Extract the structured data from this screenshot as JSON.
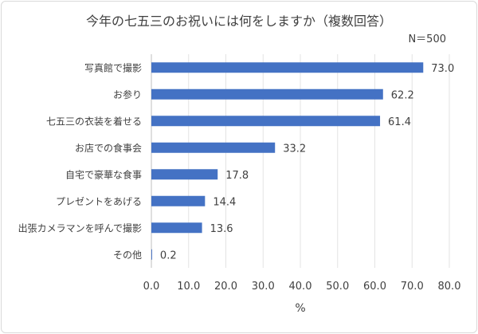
{
  "chart_data": {
    "type": "bar",
    "orientation": "horizontal",
    "title": "今年の七五三のお祝いには何をしますか（複数回答）",
    "subtitle": "N＝500",
    "categories": [
      "写真館で撮影",
      "お参り",
      "七五三の衣装を着せる",
      "お店での食事会",
      "自宅で豪華な食事",
      "プレゼントをあげる",
      "出張カメラマンを呼んで撮影",
      "その他"
    ],
    "values": [
      73.0,
      62.2,
      61.4,
      33.2,
      17.8,
      14.4,
      13.6,
      0.2
    ],
    "xlabel": "%",
    "ylabel": "",
    "xlim": [
      0,
      80
    ],
    "xticks": [
      "0.0",
      "10.0",
      "20.0",
      "30.0",
      "40.0",
      "50.0",
      "60.0",
      "70.0",
      "80.0"
    ],
    "grid": true,
    "legend": "none",
    "bar_color": "#4472C4"
  }
}
